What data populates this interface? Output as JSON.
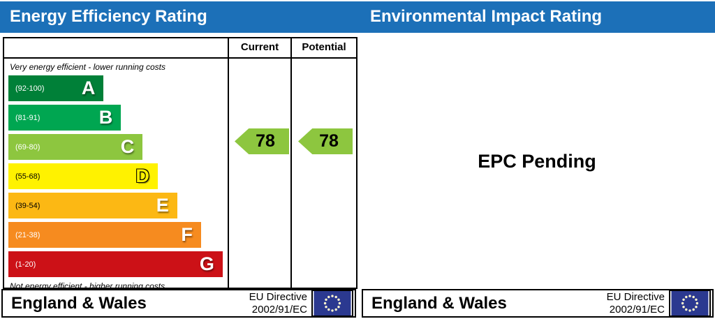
{
  "headers": {
    "left": "Energy Efficiency Rating",
    "right": "Environmental Impact Rating"
  },
  "table": {
    "current_header": "Current",
    "potential_header": "Potential"
  },
  "captions": {
    "top": "Very energy efficient - lower running costs",
    "bottom": "Not energy efficient - higher running costs"
  },
  "bands": [
    {
      "letter": "A",
      "range": "(92-100)",
      "color": "#008038",
      "width_pct": 44,
      "range_color": "#ffffff"
    },
    {
      "letter": "B",
      "range": "(81-91)",
      "color": "#00a651",
      "width_pct": 52,
      "range_color": "#ffffff"
    },
    {
      "letter": "C",
      "range": "(69-80)",
      "color": "#8dc63f",
      "width_pct": 62,
      "range_color": "#ffffff"
    },
    {
      "letter": "D",
      "range": "(55-68)",
      "color": "#fff200",
      "width_pct": 69,
      "range_color": "#000000",
      "letter_color": "#fff200",
      "outlined": true
    },
    {
      "letter": "E",
      "range": "(39-54)",
      "color": "#fcb814",
      "width_pct": 78,
      "range_color": "#000000"
    },
    {
      "letter": "F",
      "range": "(21-38)",
      "color": "#f68b1f",
      "width_pct": 89,
      "range_color": "#ffffff"
    },
    {
      "letter": "G",
      "range": "(1-20)",
      "color": "#cc1117",
      "width_pct": 99,
      "range_color": "#ffffff"
    }
  ],
  "ratings": {
    "current": "78",
    "potential": "78",
    "band": "C",
    "arrow_color": "#8dc63f"
  },
  "right_panel": {
    "message": "EPC Pending"
  },
  "footer": {
    "region": "England & Wales",
    "directive_line1": "EU Directive",
    "directive_line2": "2002/91/EC"
  },
  "colors": {
    "header_blue": "#1c70b8",
    "eu_flag_blue": "#2b3990",
    "eu_star": "#fdf6d0",
    "border": "#000000"
  },
  "chart_data": {
    "type": "bar",
    "title": "Energy Efficiency Rating",
    "categories": [
      "A",
      "B",
      "C",
      "D",
      "E",
      "F",
      "G"
    ],
    "band_ranges": [
      [
        92,
        100
      ],
      [
        81,
        91
      ],
      [
        69,
        80
      ],
      [
        55,
        68
      ],
      [
        39,
        54
      ],
      [
        21,
        38
      ],
      [
        1,
        20
      ]
    ],
    "band_colors": [
      "#008038",
      "#00a651",
      "#8dc63f",
      "#fff200",
      "#fcb814",
      "#f68b1f",
      "#cc1117"
    ],
    "band_bar_widths_pct": [
      44,
      52,
      62,
      69,
      78,
      89,
      99
    ],
    "current": 78,
    "potential": 78,
    "current_band": "C",
    "potential_band": "C",
    "xlabel": "",
    "ylabel": "",
    "legend_position": "none",
    "grid": false,
    "environmental_impact_panel": "EPC Pending",
    "footer_region": "England & Wales",
    "footer_directive": "EU Directive 2002/91/EC"
  }
}
